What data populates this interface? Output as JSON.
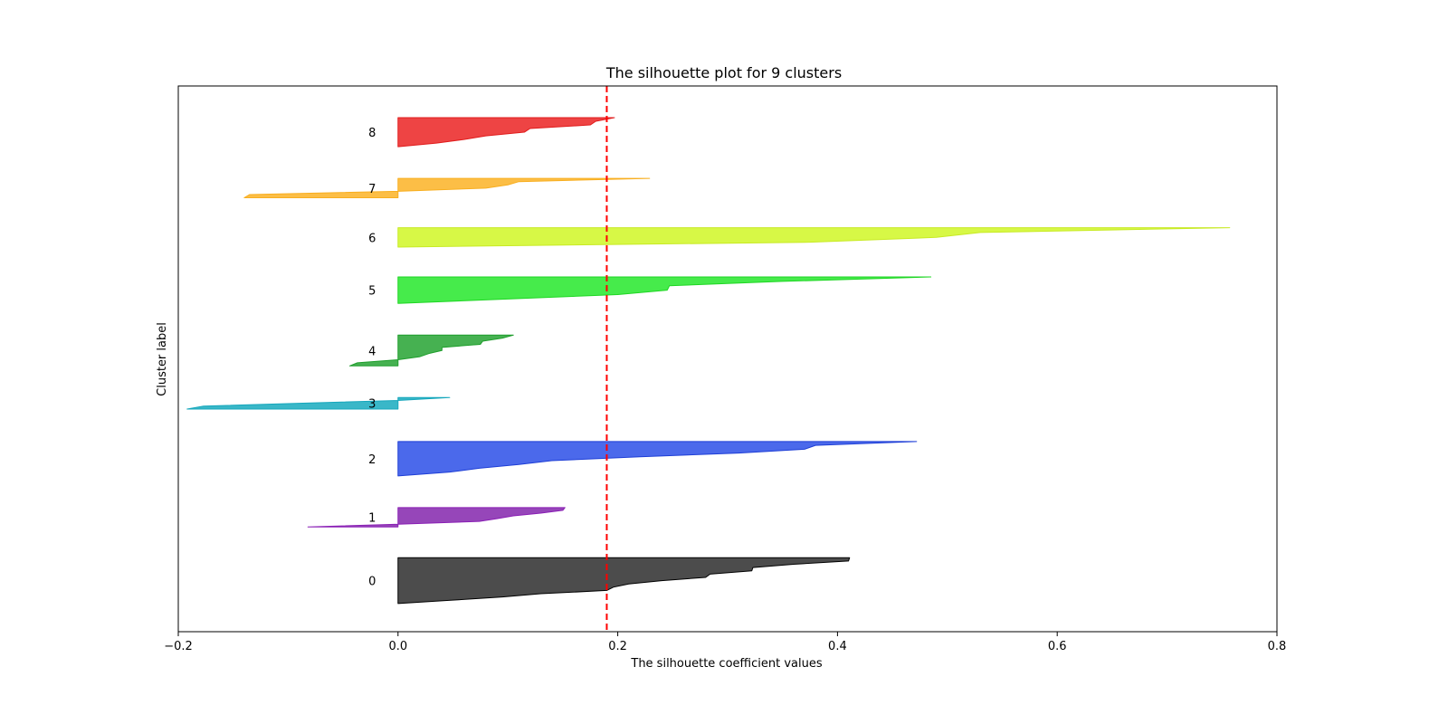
{
  "chart_data": {
    "type": "area",
    "title": "The silhouette plot for 9 clusters",
    "xlabel": "The silhouette coefficient values",
    "ylabel": "Cluster label",
    "xlim": [
      -0.2,
      0.8
    ],
    "xticks": [
      -0.2,
      0.0,
      0.2,
      0.4,
      0.6,
      0.8
    ],
    "xtick_labels": [
      "−0.2",
      "0.0",
      "0.2",
      "0.4",
      "0.6",
      "0.8"
    ],
    "ylim": [
      0,
      62
    ],
    "grid": false,
    "average_silhouette": 0.19,
    "average_line_color": "#ff0000",
    "clusters": [
      {
        "label": "0",
        "color": "#4c4c4c",
        "edge": "#000000",
        "y_lower": 3.2,
        "y_upper": 8.4,
        "values": [
          0.0,
          0.048,
          0.095,
          0.13,
          0.19,
          0.196,
          0.21,
          0.24,
          0.28,
          0.284,
          0.322,
          0.323,
          0.36,
          0.41,
          0.411
        ]
      },
      {
        "label": "1",
        "color": "#9646b9",
        "edge": "#8a1fb5",
        "y_lower": 11.9,
        "y_upper": 14.1,
        "values": [
          -0.082,
          0.0,
          0.074,
          0.09,
          0.105,
          0.13,
          0.15,
          0.152
        ]
      },
      {
        "label": "2",
        "color": "#4b69eb",
        "edge": "#1f3fd6",
        "y_lower": 17.7,
        "y_upper": 21.6,
        "values": [
          0.0,
          0.047,
          0.074,
          0.11,
          0.14,
          0.22,
          0.31,
          0.37,
          0.38,
          0.472
        ]
      },
      {
        "label": "3",
        "color": "#39b7c8",
        "edge": "#16a7bc",
        "y_lower": 25.3,
        "y_upper": 26.6,
        "values": [
          -0.192,
          -0.177,
          -0.09,
          0.0,
          0.047
        ]
      },
      {
        "label": "4",
        "color": "#46b151",
        "edge": "#1f9e2c",
        "y_lower": 30.2,
        "y_upper": 33.7,
        "values": [
          -0.044,
          -0.037,
          0.0,
          0.02,
          0.028,
          0.04,
          0.04,
          0.075,
          0.077,
          0.095,
          0.105
        ]
      },
      {
        "label": "5",
        "color": "#46eb4b",
        "edge": "#1fd624",
        "y_lower": 37.3,
        "y_upper": 40.3,
        "values": [
          0.0,
          0.1,
          0.2,
          0.245,
          0.247,
          0.35,
          0.485
        ]
      },
      {
        "label": "6",
        "color": "#d7f846",
        "edge": "#c8ea24",
        "y_lower": 43.7,
        "y_upper": 45.9,
        "values": [
          0.0,
          0.375,
          0.49,
          0.53,
          0.757
        ]
      },
      {
        "label": "7",
        "color": "#fcbe46",
        "edge": "#f8ae1f",
        "y_lower": 49.3,
        "y_upper": 51.5,
        "values": [
          -0.14,
          -0.135,
          0.0,
          0.08,
          0.1,
          0.11,
          0.229
        ]
      },
      {
        "label": "8",
        "color": "#ee4444",
        "edge": "#e01c1c",
        "y_lower": 55.1,
        "y_upper": 58.4,
        "values": [
          0.0,
          0.035,
          0.06,
          0.08,
          0.115,
          0.12,
          0.175,
          0.18,
          0.197
        ]
      }
    ]
  }
}
